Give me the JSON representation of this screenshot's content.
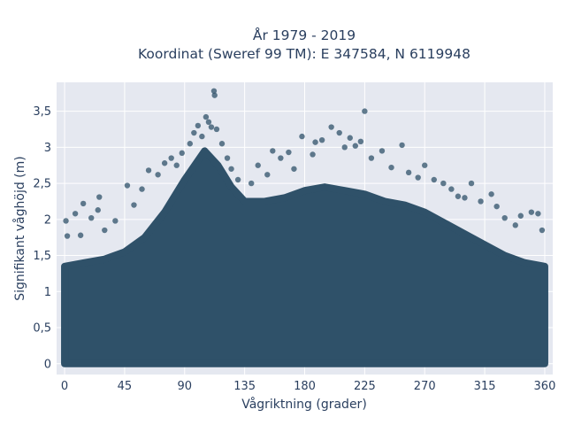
{
  "chart_data": {
    "type": "scatter",
    "title": "År 1979 - 2019",
    "subtitle": "Koordinat (Sweref 99 TM): E 347584, N 6119948",
    "xlabel": "Vågriktning (grader)",
    "ylabel": "Signifikant våghöjd (m)",
    "xlim": [
      -6,
      366
    ],
    "ylim": [
      -0.15,
      3.9
    ],
    "x_ticks": [
      0,
      45,
      90,
      135,
      180,
      225,
      270,
      315,
      360
    ],
    "x_tick_labels": [
      "0",
      "45",
      "90",
      "135",
      "180",
      "225",
      "270",
      "315",
      "360"
    ],
    "y_ticks": [
      0,
      0.5,
      1,
      1.5,
      2,
      2.5,
      3,
      3.5
    ],
    "y_tick_labels": [
      "0",
      "0,5",
      "1",
      "1,5",
      "2",
      "2,5",
      "3",
      "3,5"
    ],
    "grid": true,
    "marker_color": "#2f5169",
    "background_color": "#e5e8f0",
    "series": [
      {
        "density_envelope": [
          [
            0,
            1.35
          ],
          [
            15,
            1.4
          ],
          [
            30,
            1.45
          ],
          [
            45,
            1.55
          ],
          [
            60,
            1.75
          ],
          [
            75,
            2.1
          ],
          [
            90,
            2.55
          ],
          [
            105,
            2.95
          ],
          [
            115,
            2.75
          ],
          [
            125,
            2.45
          ],
          [
            135,
            2.25
          ],
          [
            150,
            2.25
          ],
          [
            165,
            2.3
          ],
          [
            180,
            2.4
          ],
          [
            195,
            2.45
          ],
          [
            210,
            2.4
          ],
          [
            225,
            2.35
          ],
          [
            240,
            2.25
          ],
          [
            255,
            2.2
          ],
          [
            270,
            2.1
          ],
          [
            285,
            1.95
          ],
          [
            300,
            1.8
          ],
          [
            315,
            1.65
          ],
          [
            330,
            1.5
          ],
          [
            345,
            1.4
          ],
          [
            360,
            1.35
          ]
        ],
        "outliers": [
          [
            1,
            1.98
          ],
          [
            2,
            1.77
          ],
          [
            8,
            2.08
          ],
          [
            12,
            1.78
          ],
          [
            14,
            2.22
          ],
          [
            20,
            2.02
          ],
          [
            25,
            2.13
          ],
          [
            26,
            2.31
          ],
          [
            30,
            1.85
          ],
          [
            38,
            1.98
          ],
          [
            47,
            2.47
          ],
          [
            52,
            2.2
          ],
          [
            58,
            2.42
          ],
          [
            63,
            2.68
          ],
          [
            70,
            2.62
          ],
          [
            75,
            2.78
          ],
          [
            80,
            2.85
          ],
          [
            84,
            2.75
          ],
          [
            88,
            2.92
          ],
          [
            94,
            3.05
          ],
          [
            97,
            3.2
          ],
          [
            100,
            3.3
          ],
          [
            103,
            3.15
          ],
          [
            106,
            3.42
          ],
          [
            108,
            3.35
          ],
          [
            110,
            3.28
          ],
          [
            112,
            3.78
          ],
          [
            112.5,
            3.72
          ],
          [
            114,
            3.25
          ],
          [
            118,
            3.05
          ],
          [
            122,
            2.85
          ],
          [
            125,
            2.7
          ],
          [
            130,
            2.55
          ],
          [
            140,
            2.5
          ],
          [
            145,
            2.75
          ],
          [
            152,
            2.62
          ],
          [
            156,
            2.95
          ],
          [
            162,
            2.85
          ],
          [
            168,
            2.93
          ],
          [
            172,
            2.7
          ],
          [
            178,
            3.15
          ],
          [
            186,
            2.9
          ],
          [
            188,
            3.07
          ],
          [
            193,
            3.1
          ],
          [
            200,
            3.28
          ],
          [
            206,
            3.2
          ],
          [
            210,
            3.0
          ],
          [
            214,
            3.13
          ],
          [
            218,
            3.02
          ],
          [
            222,
            3.08
          ],
          [
            225,
            3.5
          ],
          [
            230,
            2.85
          ],
          [
            238,
            2.95
          ],
          [
            245,
            2.72
          ],
          [
            253,
            3.03
          ],
          [
            258,
            2.65
          ],
          [
            265,
            2.58
          ],
          [
            270,
            2.75
          ],
          [
            277,
            2.55
          ],
          [
            284,
            2.5
          ],
          [
            290,
            2.42
          ],
          [
            295,
            2.32
          ],
          [
            300,
            2.3
          ],
          [
            305,
            2.5
          ],
          [
            312,
            2.25
          ],
          [
            320,
            2.35
          ],
          [
            324,
            2.18
          ],
          [
            330,
            2.02
          ],
          [
            338,
            1.92
          ],
          [
            342,
            2.05
          ],
          [
            350,
            2.1
          ],
          [
            355,
            2.08
          ],
          [
            358,
            1.85
          ]
        ]
      }
    ]
  }
}
